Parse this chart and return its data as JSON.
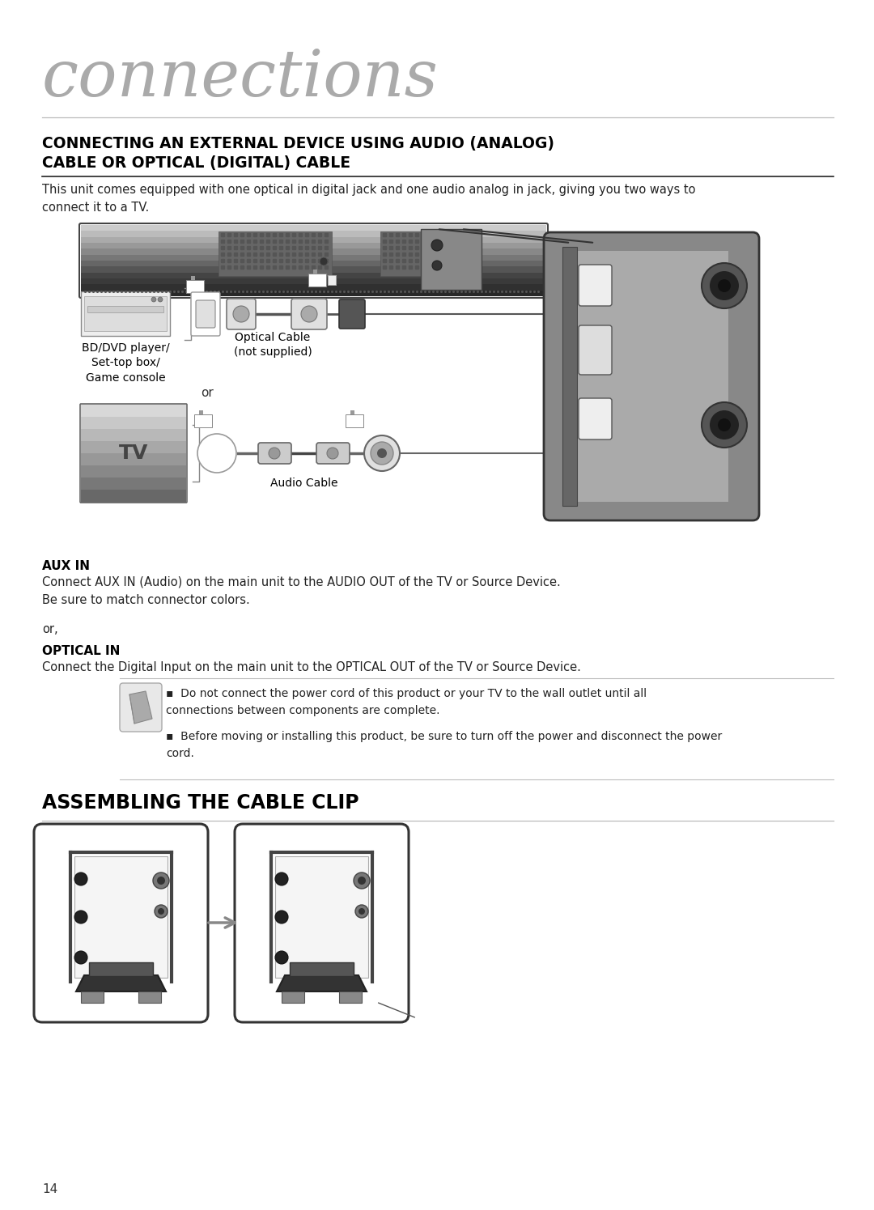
{
  "title": "connections",
  "section1_title_line1": "CONNECTING AN EXTERNAL DEVICE USING AUDIO (ANALOG)",
  "section1_title_line2": "CABLE OR OPTICAL (DIGITAL) CABLE",
  "section1_body": "This unit comes equipped with one optical in digital jack and one audio analog in jack, giving you two ways to\nconnect it to a TV.",
  "bd_label": "BD/DVD player/\nSet-top box/\nGame console",
  "optical_cable_label": "Optical Cable\n(not supplied)",
  "audio_cable_label": "Audio Cable",
  "or_text": "or",
  "tv_label": "TV",
  "aux_in_title": "AUX IN",
  "aux_in_body": "Connect AUX IN (Audio) on the main unit to the AUDIO OUT of the TV or Source Device.\nBe sure to match connector colors.",
  "or_comma": "or,",
  "optical_in_title": "OPTICAL IN",
  "optical_in_body": "Connect the Digital Input on the main unit to the OPTICAL OUT of the TV or Source Device.",
  "note1": "Do not connect the power cord of this product or your TV to the wall outlet until all\nconnections between components are complete.",
  "note2": "Before moving or installing this product, be sure to turn off the power and disconnect the power\ncord.",
  "section2_title": "ASSEMBLING THE CABLE CLIP",
  "page_number": "14",
  "bg_color": "#ffffff"
}
